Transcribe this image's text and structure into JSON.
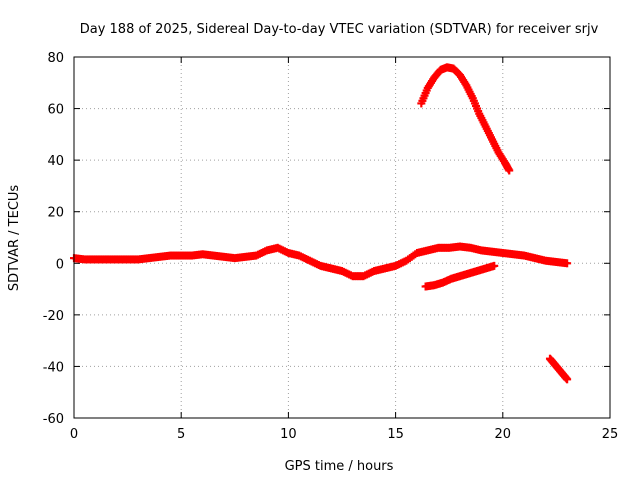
{
  "chart_data": {
    "type": "scatter",
    "title": "Day 188 of 2025, Sidereal Day-to-day VTEC variation (SDTVAR) for receiver srjv",
    "xlabel": "GPS time / hours",
    "ylabel": "SDTVAR / TECUs",
    "xlim": [
      0,
      25
    ],
    "ylim": [
      -60,
      80
    ],
    "x_ticks": [
      0,
      5,
      10,
      15,
      20,
      25
    ],
    "y_ticks": [
      -60,
      -40,
      -20,
      0,
      20,
      40,
      60,
      80
    ],
    "grid": true,
    "legend": "none",
    "marker_color": "#ff0000",
    "series": [
      {
        "x": [
          0.0,
          0.5,
          1.0,
          1.5,
          2.0,
          2.5,
          3.0,
          3.5,
          4.0,
          4.5,
          5.0,
          5.5,
          6.0,
          6.5,
          7.0,
          7.5,
          8.0,
          8.5,
          9.0,
          9.5,
          10.0,
          10.5,
          11.0,
          11.5,
          12.0,
          12.5,
          13.0,
          13.5,
          14.0,
          14.5,
          15.0,
          15.5,
          16.0,
          16.5,
          17.0,
          17.5,
          18.0,
          18.5,
          19.0,
          19.5,
          20.0,
          20.5,
          21.0,
          21.5,
          22.0,
          22.5,
          23.0
        ],
        "y": [
          2,
          1.5,
          1.5,
          1.5,
          1.5,
          1.5,
          1.5,
          2,
          2.5,
          3,
          3,
          3,
          3.5,
          3,
          2.5,
          2,
          2.5,
          3,
          5,
          6,
          4,
          3,
          1,
          -1,
          -2,
          -3,
          -5,
          -5,
          -3,
          -2,
          -1,
          1,
          4,
          5,
          6,
          6,
          6.5,
          6,
          5,
          4.5,
          4,
          3.5,
          3,
          2,
          1,
          0.5,
          0
        ]
      },
      {
        "x": [
          16.2,
          16.5,
          16.8,
          17.1,
          17.4,
          17.7,
          18.0,
          18.3,
          18.6,
          18.9,
          19.2,
          19.5,
          19.8,
          20.1,
          20.3
        ],
        "y": [
          62,
          68,
          72,
          75,
          76,
          75.5,
          73,
          69,
          64,
          58,
          53,
          48,
          43,
          39,
          36
        ]
      },
      {
        "x": [
          16.4,
          16.8,
          17.2,
          17.6,
          18.0,
          18.4,
          18.8,
          19.2,
          19.6
        ],
        "y": [
          -9,
          -8.5,
          -7.5,
          -6,
          -5,
          -4,
          -3,
          -2,
          -1
        ]
      },
      {
        "x": [
          22.2,
          22.4,
          22.6,
          22.8,
          23.0
        ],
        "y": [
          -37,
          -39,
          -41,
          -43,
          -45
        ]
      }
    ]
  }
}
